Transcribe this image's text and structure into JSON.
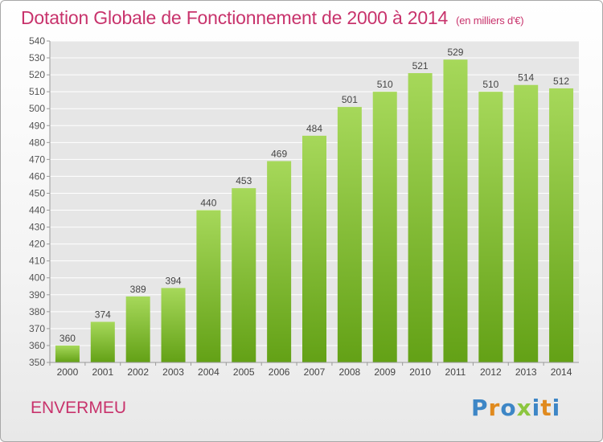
{
  "title": "Dotation Globale de Fonctionnement de 2000 à 2014",
  "subtitle": "(en milliers d'€)",
  "commune": "ENVERMEU",
  "logo": {
    "text": "Proxiti",
    "colors": [
      "#3d86c6",
      "#e08a1e",
      "#3d86c6",
      "#8cc63f",
      "#3d86c6",
      "#e08a1e",
      "#3d86c6"
    ]
  },
  "colors": {
    "bar_top": "#a6d85a",
    "bar_bottom": "#63a116",
    "title": "#c8336c",
    "grid": "#ffffff",
    "plot_bg": "#e6e6e6"
  },
  "chart_data": {
    "type": "bar",
    "categories": [
      "2000",
      "2001",
      "2002",
      "2003",
      "2004",
      "2005",
      "2006",
      "2007",
      "2008",
      "2009",
      "2010",
      "2011",
      "2012",
      "2013",
      "2014"
    ],
    "values": [
      360,
      374,
      389,
      394,
      440,
      453,
      469,
      484,
      501,
      510,
      521,
      529,
      510,
      514,
      512
    ],
    "data_labels": [
      "360",
      "374",
      "389",
      "394",
      "440",
      "453",
      "469",
      "484",
      "501",
      "510",
      "521",
      "529",
      "510",
      "514",
      "512"
    ],
    "y_ticks": [
      "350",
      "360",
      "370",
      "380",
      "390",
      "400",
      "410",
      "420",
      "430",
      "440",
      "450",
      "460",
      "470",
      "480",
      "490",
      "500",
      "510",
      "520",
      "530",
      "540"
    ],
    "ylim": [
      350,
      540
    ],
    "grid": true
  }
}
